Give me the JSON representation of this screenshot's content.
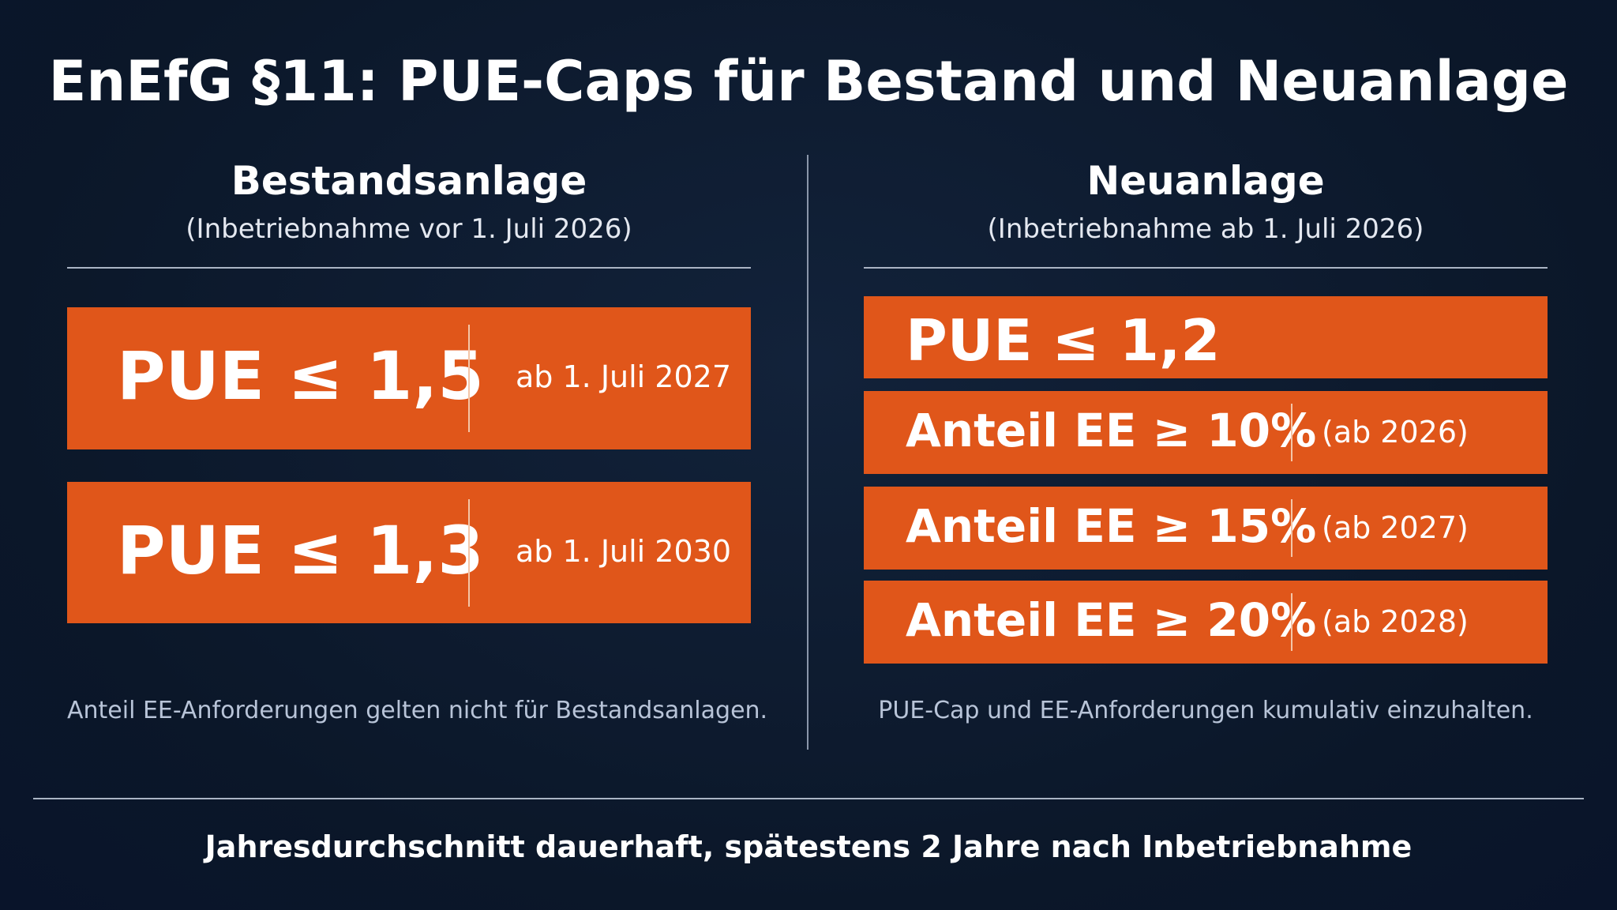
{
  "header": {
    "title": "EnEfG §11: PUE-Caps für Bestand und Neuanlage"
  },
  "left": {
    "heading": "Bestandsanlage",
    "subheading": "(Inbetriebnahme vor 1. Juli 2026)",
    "boxes": [
      {
        "label": "PUE ≤ 1,5",
        "date": "ab 1. Juli 2027"
      },
      {
        "label": "PUE ≤ 1,3",
        "date": "ab 1. Juli 2030"
      }
    ],
    "note": "Anteil EE-Anforderungen gelten nicht für Bestandsanlagen."
  },
  "right": {
    "heading": "Neuanlage",
    "subheading": "(Inbetriebnahme ab 1. Juli 2026)",
    "pue": "PUE ≤ 1,2",
    "boxes": [
      {
        "label": "Anteil EE ≥ 10%",
        "date": "(ab 2026)"
      },
      {
        "label": "Anteil EE ≥ 15%",
        "date": "(ab 2027)"
      },
      {
        "label": "Anteil EE ≥ 20%",
        "date": "(ab 2028)"
      }
    ],
    "note": "PUE-Cap und EE-Anforderungen kumulativ einzuhalten."
  },
  "footer": {
    "text": "Jahresdurchschnitt dauerhaft, spätestens 2 Jahre nach Inbetriebnahme"
  }
}
